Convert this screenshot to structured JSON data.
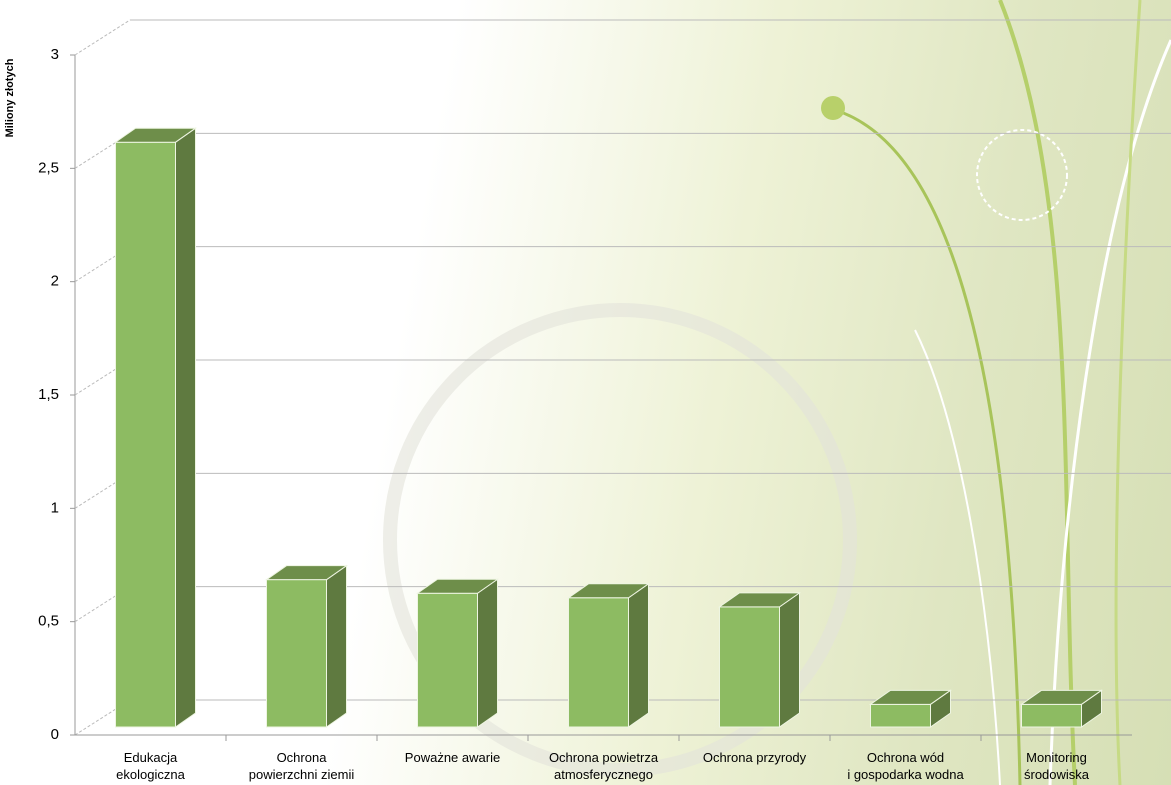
{
  "chart_data": {
    "type": "bar3d",
    "y_label": "Miliony złotych",
    "categories": [
      "Edukacja\nekologiczna",
      "Ochrona\npowierzchni ziemii",
      "Poważne awarie",
      "Ochrona powietrza\natmosferycznego",
      "Ochrona przyrody",
      "Ochrona wód\ni gospodarka wodna",
      "Monitoring\nśrodowiska"
    ],
    "values": [
      2.58,
      0.65,
      0.59,
      0.57,
      0.53,
      0.1,
      0.1
    ],
    "color": "#8dbb62",
    "ylim": [
      0,
      3
    ],
    "yticks": [
      0,
      {
        "value": 0.5,
        "label": "0,5"
      },
      1,
      {
        "value": 1.5,
        "label": "1,5"
      },
      2,
      {
        "value": 2.5,
        "label": "2,5"
      },
      3
    ],
    "grid": true
  }
}
